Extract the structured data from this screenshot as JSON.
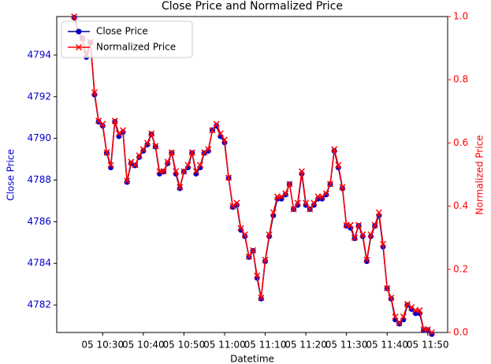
{
  "chart_data": {
    "type": "line",
    "title": "Close Price and Normalized Price",
    "x_label": "Datetime",
    "y_label": "Close Price",
    "y2_label": "Normalized Price",
    "x": [
      "05 10:23",
      "05 10:24",
      "05 10:25",
      "05 10:26",
      "05 10:27",
      "05 10:28",
      "05 10:29",
      "05 10:30",
      "05 10:31",
      "05 10:32",
      "05 10:33",
      "05 10:34",
      "05 10:35",
      "05 10:36",
      "05 10:37",
      "05 10:38",
      "05 10:39",
      "05 10:40",
      "05 10:41",
      "05 10:42",
      "05 10:43",
      "05 10:44",
      "05 10:45",
      "05 10:46",
      "05 10:47",
      "05 10:48",
      "05 10:49",
      "05 10:50",
      "05 10:51",
      "05 10:52",
      "05 10:53",
      "05 10:54",
      "05 10:55",
      "05 10:56",
      "05 10:57",
      "05 10:58",
      "05 10:59",
      "05 11:00",
      "05 11:01",
      "05 11:02",
      "05 11:03",
      "05 11:04",
      "05 11:05",
      "05 11:06",
      "05 11:07",
      "05 11:08",
      "05 11:09",
      "05 11:10",
      "05 11:11",
      "05 11:12",
      "05 11:13",
      "05 11:14",
      "05 11:15",
      "05 11:16",
      "05 11:17",
      "05 11:18",
      "05 11:19",
      "05 11:20",
      "05 11:21",
      "05 11:22",
      "05 11:23",
      "05 11:24",
      "05 11:25",
      "05 11:26",
      "05 11:27",
      "05 11:28",
      "05 11:29",
      "05 11:30",
      "05 11:31",
      "05 11:32",
      "05 11:33",
      "05 11:34",
      "05 11:35",
      "05 11:36",
      "05 11:37",
      "05 11:38",
      "05 11:39",
      "05 11:40",
      "05 11:41",
      "05 11:42",
      "05 11:43",
      "05 11:44",
      "05 11:45",
      "05 11:46",
      "05 11:47",
      "05 11:48",
      "05 11:49",
      "05 11:50",
      "05 11:51"
    ],
    "series": [
      {
        "name": "Close Price",
        "color": "#0000cc",
        "line_color": "#000080",
        "marker": "o",
        "values": [
          4795.8,
          4795.1,
          4794.8,
          4793.9,
          4794.6,
          4792.1,
          4790.8,
          4790.6,
          4789.3,
          4788.6,
          4790.8,
          4790.1,
          4790.3,
          4787.9,
          4788.8,
          4788.7,
          4789.1,
          4789.4,
          4789.7,
          4790.2,
          4789.6,
          4788.3,
          4788.4,
          4788.8,
          4789.3,
          4788.3,
          4787.6,
          4788.4,
          4788.6,
          4789.3,
          4788.3,
          4788.6,
          4789.3,
          4789.4,
          4790.4,
          4790.6,
          4790.1,
          4789.8,
          4788.1,
          4786.7,
          4786.8,
          4785.6,
          4785.3,
          4784.3,
          4784.6,
          4783.3,
          4782.3,
          4784.1,
          4785.3,
          4786.3,
          4787.1,
          4787.1,
          4787.3,
          4787.8,
          4786.6,
          4786.8,
          4788.3,
          4786.8,
          4786.6,
          4786.8,
          4787.1,
          4787.1,
          4787.3,
          4787.8,
          4789.4,
          4788.6,
          4787.6,
          4785.8,
          4785.7,
          4785.2,
          4785.8,
          4785.3,
          4784.1,
          4785.3,
          4785.8,
          4786.3,
          4784.8,
          4782.8,
          4782.3,
          4781.3,
          4781.1,
          4781.3,
          4782.0,
          4781.8,
          4781.6,
          4781.6,
          4780.8,
          4780.8,
          4780.6
        ]
      },
      {
        "name": "Normalized Price",
        "color": "#ff0000",
        "line_color": "#ff0000",
        "marker": "x",
        "axis": "y2",
        "values": [
          1.0,
          0.95,
          0.93,
          0.88,
          0.92,
          0.76,
          0.67,
          0.66,
          0.57,
          0.53,
          0.67,
          0.63,
          0.64,
          0.48,
          0.54,
          0.53,
          0.56,
          0.58,
          0.6,
          0.63,
          0.59,
          0.51,
          0.51,
          0.54,
          0.57,
          0.51,
          0.46,
          0.51,
          0.53,
          0.57,
          0.51,
          0.53,
          0.57,
          0.58,
          0.64,
          0.66,
          0.63,
          0.61,
          0.49,
          0.4,
          0.41,
          0.33,
          0.31,
          0.24,
          0.26,
          0.18,
          0.11,
          0.23,
          0.31,
          0.38,
          0.43,
          0.43,
          0.44,
          0.47,
          0.39,
          0.41,
          0.51,
          0.41,
          0.39,
          0.41,
          0.43,
          0.43,
          0.44,
          0.47,
          0.58,
          0.53,
          0.46,
          0.34,
          0.34,
          0.3,
          0.34,
          0.31,
          0.23,
          0.31,
          0.34,
          0.38,
          0.28,
          0.14,
          0.11,
          0.05,
          0.03,
          0.05,
          0.09,
          0.08,
          0.07,
          0.07,
          0.01,
          0.01,
          0.0
        ]
      }
    ],
    "xlim": [
      "05 10:18.7",
      "05 11:54.9"
    ],
    "xticks": [
      "05 10:30",
      "05 10:40",
      "05 10:50",
      "05 11:00",
      "05 11:10",
      "05 11:20",
      "05 11:30",
      "05 11:40",
      "05 11:50"
    ],
    "ylim": [
      4780.68,
      4795.85
    ],
    "yticks": [
      4782,
      4784,
      4786,
      4788,
      4790,
      4792,
      4794
    ],
    "y2lim": [
      0,
      1
    ],
    "y2ticks": [
      {
        "value": 0,
        "label": "0.0"
      },
      {
        "value": 0.2,
        "label": "0.2"
      },
      {
        "value": 0.4,
        "label": "0.4"
      },
      {
        "value": 0.6,
        "label": "0.6"
      },
      {
        "value": 0.8,
        "label": "0.8"
      },
      {
        "value": 1,
        "label": "1.0"
      }
    ],
    "y_color": "#0000cc",
    "y2_color": "#ff0000",
    "legend": "upper left"
  }
}
